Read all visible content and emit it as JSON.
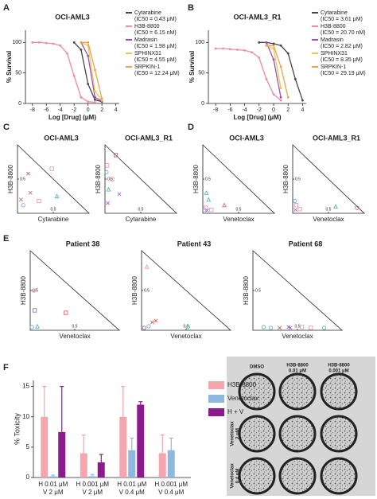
{
  "panel_labels": [
    "A",
    "B",
    "C",
    "D",
    "E",
    "F"
  ],
  "chart_data": [
    {
      "type": "line",
      "title": "OCI-AML3",
      "x_label": "Log [Drug] (μM)",
      "y_label": "% Survival",
      "xlim": [
        -9,
        4.5
      ],
      "xticks": [
        -8,
        -6,
        -4,
        -2,
        0,
        2,
        4
      ],
      "ylim": [
        0,
        120
      ],
      "yticks": [
        0,
        50,
        100
      ],
      "x": [
        -8,
        -7,
        -6,
        -5,
        -4,
        -3,
        -2,
        -1,
        0,
        1,
        2,
        3,
        4
      ],
      "series": [
        {
          "name": "Cytarabine",
          "label": "(IC50 = 0.43 μM)",
          "color": "#444444",
          "values": [
            null,
            null,
            null,
            null,
            null,
            null,
            100,
            88,
            32,
            6,
            3,
            null,
            null
          ]
        },
        {
          "name": "H3B-8800",
          "label": "(IC50 = 6.15 nM)",
          "color": "#f08aa0",
          "values": [
            100,
            100,
            99,
            98,
            95,
            82,
            45,
            10,
            3,
            2,
            null,
            null,
            null
          ]
        },
        {
          "name": "Madrasin",
          "label": "(IC50 = 1.98 μM)",
          "color": "#a24bb8",
          "values": [
            null,
            null,
            null,
            null,
            null,
            null,
            null,
            100,
            78,
            10,
            4,
            null,
            null
          ]
        },
        {
          "name": "SPHINX31",
          "label": "(IC50 = 4.55 μM)",
          "color": "#e8c94a",
          "values": [
            null,
            null,
            null,
            null,
            null,
            null,
            null,
            100,
            95,
            20,
            5,
            null,
            null
          ]
        },
        {
          "name": "SRPKIN-1",
          "label": "(IC50 = 12.24 μM)",
          "color": "#f0a050",
          "values": [
            null,
            null,
            null,
            null,
            null,
            null,
            null,
            100,
            100,
            55,
            8,
            null,
            null
          ]
        }
      ]
    },
    {
      "type": "line",
      "title": "OCI-AML3_R1",
      "x_label": "Log [Drug] (μM)",
      "y_label": "% Survival",
      "xlim": [
        -9,
        4.5
      ],
      "xticks": [
        -8,
        -6,
        -4,
        -2,
        0,
        2,
        4
      ],
      "ylim": [
        0,
        120
      ],
      "yticks": [
        0,
        50,
        100
      ],
      "x": [
        -8,
        -7,
        -6,
        -5,
        -4,
        -3,
        -2,
        -1,
        0,
        1,
        2,
        3,
        4
      ],
      "series": [
        {
          "name": "Cytarabine",
          "label": "(IC50 = 3.61 μM)",
          "color": "#444444",
          "values": [
            null,
            null,
            null,
            null,
            null,
            null,
            100,
            100,
            98,
            95,
            82,
            40,
            5
          ]
        },
        {
          "name": "H3B-8800",
          "label": "(IC50 = 20.70 nM)",
          "color": "#f08aa0",
          "values": [
            90,
            90,
            89,
            88,
            87,
            84,
            75,
            40,
            15,
            5,
            null,
            null,
            null
          ]
        },
        {
          "name": "Madrasin",
          "label": "(IC50 = 2.82 μM)",
          "color": "#a24bb8",
          "values": [
            null,
            null,
            null,
            null,
            null,
            null,
            null,
            100,
            72,
            10,
            null,
            null,
            null
          ]
        },
        {
          "name": "SPHINX31",
          "label": "(IC50 = 8.35 μM)",
          "color": "#e8c94a",
          "values": [
            null,
            null,
            null,
            null,
            null,
            null,
            null,
            95,
            90,
            25,
            null,
            null,
            null
          ]
        },
        {
          "name": "SRPKIN-1",
          "label": "(IC50 = 29.19 μM)",
          "color": "#f0a050",
          "values": [
            null,
            null,
            null,
            null,
            null,
            null,
            null,
            95,
            95,
            60,
            10,
            null,
            null
          ]
        }
      ]
    },
    {
      "type": "scatter",
      "title": "OCI-AML3",
      "x_label": "Cytarabine",
      "y_label": "H3B-8800",
      "xlim": [
        0,
        1
      ],
      "ylim": [
        0,
        1
      ],
      "xticks": [
        0.5
      ],
      "yticks": [
        0.5
      ],
      "series": [
        {
          "color": "#d9534f",
          "marker": "x",
          "x": [
            0.15
          ],
          "values": [
            0.58
          ]
        },
        {
          "color": "#e98fb0",
          "marker": "square",
          "x": [
            0.48,
            0.3
          ],
          "values": [
            0.65,
            0.18
          ]
        },
        {
          "color": "#3cb88f",
          "marker": "triangle",
          "x": [
            0.55
          ],
          "values": [
            0.25
          ]
        },
        {
          "color": "#a05ab8",
          "marker": "x",
          "x": [
            0.18,
            0.05
          ],
          "values": [
            0.3,
            0.2
          ]
        },
        {
          "color": "#6aa8d8",
          "marker": "circle",
          "x": [
            0.08
          ],
          "values": [
            0.12
          ]
        }
      ]
    },
    {
      "type": "scatter",
      "title": "OCI-AML3_R1",
      "x_label": "Cytarabine",
      "y_label": "H3B-8800",
      "xlim": [
        0,
        1
      ],
      "ylim": [
        0,
        1
      ],
      "xticks": [
        0.5
      ],
      "yticks": [
        0.5
      ],
      "series": [
        {
          "color": "#d9534f",
          "marker": "square",
          "x": [
            0.15
          ],
          "values": [
            0.85
          ]
        },
        {
          "color": "#e98fb0",
          "marker": "square",
          "x": [
            0.03,
            0.1
          ],
          "values": [
            0.7,
            0.5
          ]
        },
        {
          "color": "#3cb88f",
          "marker": "triangle",
          "x": [
            0.05
          ],
          "values": [
            0.35
          ]
        },
        {
          "color": "#a05ab8",
          "marker": "x",
          "x": [
            0.04,
            0.2
          ],
          "values": [
            0.15,
            0.28
          ]
        },
        {
          "color": "#6aa8d8",
          "marker": "circle",
          "x": [
            0.02
          ],
          "values": [
            0.6
          ]
        }
      ]
    },
    {
      "type": "scatter",
      "title": "OCI-AML3",
      "x_label": "Venetoclax",
      "y_label": "H3B-8800",
      "xlim": [
        0,
        1
      ],
      "ylim": [
        0,
        1
      ],
      "xticks": [
        0.5
      ],
      "yticks": [
        0.5
      ],
      "series": [
        {
          "color": "#d9534f",
          "marker": "triangle",
          "x": [
            0.3
          ],
          "values": [
            0.12
          ]
        },
        {
          "color": "#e98fb0",
          "marker": "square",
          "x": [
            0.12,
            0.04
          ],
          "values": [
            0.05,
            0.08
          ]
        },
        {
          "color": "#3cb88f",
          "marker": "triangle",
          "x": [
            0.05,
            0.08
          ],
          "values": [
            0.3,
            0.2
          ]
        },
        {
          "color": "#a05ab8",
          "marker": "x",
          "x": [
            0.06
          ],
          "values": [
            0.04
          ]
        },
        {
          "color": "#6aa8d8",
          "marker": "circle",
          "x": [
            0.02
          ],
          "values": [
            0.05
          ]
        }
      ]
    },
    {
      "type": "scatter",
      "title": "OCI-AML3_R1",
      "x_label": "Venetoclax",
      "y_label": "H3B-8800",
      "xlim": [
        0,
        1
      ],
      "ylim": [
        0,
        1
      ],
      "xticks": [
        0.5
      ],
      "yticks": [
        0.5
      ],
      "series": [
        {
          "color": "#d9534f",
          "marker": "circle",
          "x": [
            0.9
          ],
          "values": [
            0.08
          ]
        },
        {
          "color": "#e98fb0",
          "marker": "square",
          "x": [
            0.1,
            0.05
          ],
          "values": [
            0.06,
            0.12
          ]
        },
        {
          "color": "#3cb88f",
          "marker": "triangle",
          "x": [
            0.6
          ],
          "values": [
            0.1
          ]
        },
        {
          "color": "#a05ab8",
          "marker": "x",
          "x": [
            0.04
          ],
          "values": [
            0.05
          ]
        },
        {
          "color": "#6aa8d8",
          "marker": "circle",
          "x": [
            0.03
          ],
          "values": [
            0.18
          ]
        }
      ]
    },
    {
      "type": "scatter",
      "title": "Patient 38",
      "x_label": "Venetoclax",
      "y_label": "H3B-8800",
      "xlim": [
        0,
        1
      ],
      "ylim": [
        0,
        1
      ],
      "xticks": [
        0.5
      ],
      "yticks": [
        0.5
      ],
      "series": [
        {
          "color": "#d9534f",
          "marker": "square",
          "x": [
            0.4
          ],
          "values": [
            0.22
          ]
        },
        {
          "color": "#e98fb0",
          "marker": "circle",
          "x": [
            0.04
          ],
          "values": [
            0.5
          ]
        },
        {
          "color": "#3cb88f",
          "marker": "triangle",
          "x": [
            0.08
          ],
          "values": [
            0.05
          ]
        },
        {
          "color": "#a05ab8",
          "marker": "square",
          "x": [
            0.05
          ],
          "values": [
            0.25
          ]
        },
        {
          "color": "#6aa8d8",
          "marker": "circle",
          "x": [
            0.02
          ],
          "values": [
            0.04
          ]
        }
      ]
    },
    {
      "type": "scatter",
      "title": "Patient 43",
      "x_label": "Venetoclax",
      "y_label": "H3B-8800",
      "xlim": [
        0,
        1
      ],
      "ylim": [
        0,
        1
      ],
      "xticks": [
        0.5
      ],
      "yticks": [
        0.5
      ],
      "series": [
        {
          "color": "#d9534f",
          "marker": "x",
          "x": [
            0.12,
            0.16
          ],
          "values": [
            0.1,
            0.12
          ]
        },
        {
          "color": "#e98fb0",
          "marker": "triangle",
          "x": [
            0.06
          ],
          "values": [
            0.8
          ]
        },
        {
          "color": "#3cb88f",
          "marker": "circle",
          "x": [
            0.52
          ],
          "values": [
            0.04
          ]
        },
        {
          "color": "#a05ab8",
          "marker": "circle",
          "x": [
            0.03
          ],
          "values": [
            0.03
          ]
        },
        {
          "color": "#6aa8d8",
          "marker": "circle",
          "x": [
            0.08
          ],
          "values": [
            0.05
          ]
        }
      ]
    },
    {
      "type": "scatter",
      "title": "Patient 68",
      "x_label": "Venetoclax",
      "y_label": "H3B-8800",
      "xlim": [
        0,
        1
      ],
      "ylim": [
        0,
        1
      ],
      "xticks": [
        0.5
      ],
      "yticks": [
        0.5
      ],
      "series": [
        {
          "color": "#d9534f",
          "marker": "x",
          "x": [
            0.3
          ],
          "values": [
            0.03
          ]
        },
        {
          "color": "#e98fb0",
          "marker": "square",
          "x": [
            0.55,
            0.65
          ],
          "values": [
            0.04,
            0.03
          ]
        },
        {
          "color": "#3cb88f",
          "marker": "circle",
          "x": [
            0.12,
            0.8
          ],
          "values": [
            0.04,
            0.03
          ]
        },
        {
          "color": "#a05ab8",
          "marker": "x",
          "x": [
            0.4,
            0.42
          ],
          "values": [
            0.04,
            0.03
          ]
        },
        {
          "color": "#6aa8d8",
          "marker": "circle",
          "x": [
            0.2
          ],
          "values": [
            0.03
          ]
        }
      ]
    },
    {
      "type": "bar",
      "y_label": "% Toxicity",
      "ylim": [
        0,
        16
      ],
      "yticks": [
        0,
        5,
        10,
        15
      ],
      "categories": [
        [
          "H 0.01 μM",
          "V 2 μM"
        ],
        [
          "H 0.001 μM",
          "V 2 μM"
        ],
        [
          "H 0.01 μM",
          "V 0.4 μM"
        ],
        [
          "H 0.001 μM",
          "V 0.4 μM"
        ]
      ],
      "series": [
        {
          "name": "H3B-8800",
          "color": "#f4a5ae",
          "values": [
            10,
            4,
            10,
            4
          ],
          "errors": [
            5,
            3,
            5,
            3
          ]
        },
        {
          "name": "Venetoclax",
          "color": "#8fb8de",
          "values": [
            0.2,
            0.2,
            4.5,
            4.5
          ],
          "errors": [
            0.2,
            0.3,
            2,
            2
          ]
        },
        {
          "name": "H + V",
          "color": "#8b1a8b",
          "values": [
            7.5,
            2.5,
            12,
            null
          ],
          "errors": [
            7.5,
            1.3,
            0.5,
            null
          ]
        }
      ]
    }
  ],
  "plate": {
    "columns": [
      [
        "DMSO"
      ],
      [
        "H3B-8800",
        "0.01 μM"
      ],
      [
        "H3B-8800",
        "0.001 μM"
      ]
    ],
    "rows": [
      [
        "Venetoclax",
        "2 μM"
      ],
      [
        "Venetoclax",
        "0.4 μM"
      ]
    ]
  }
}
